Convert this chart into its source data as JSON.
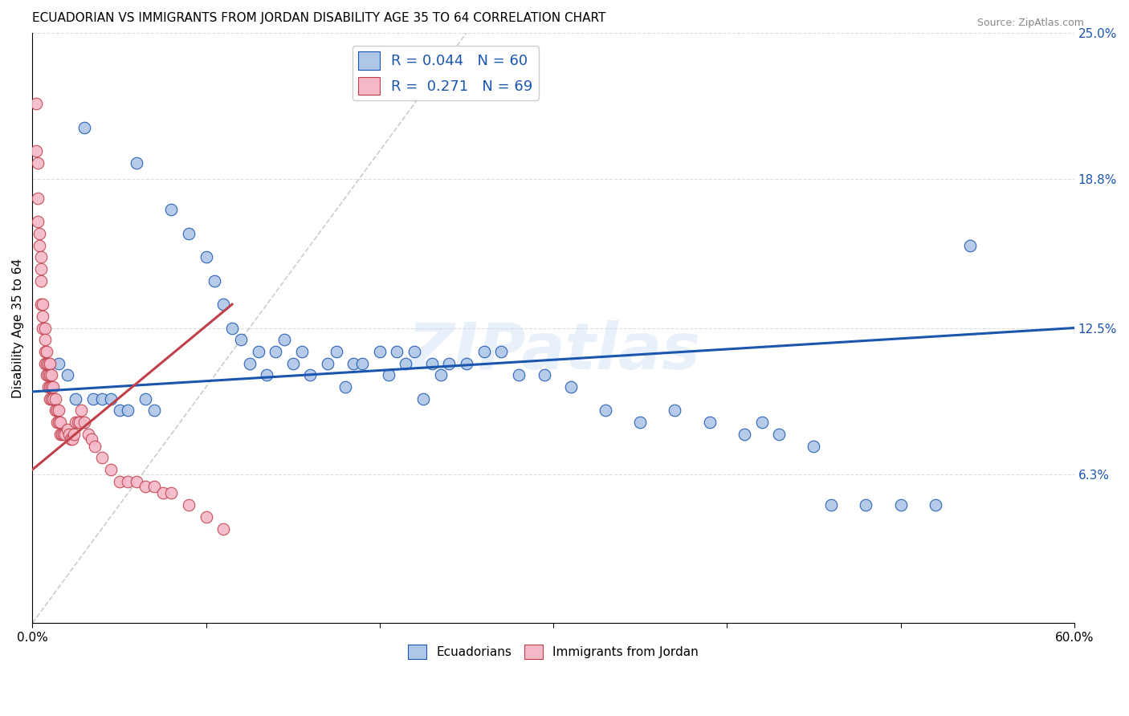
{
  "title": "ECUADORIAN VS IMMIGRANTS FROM JORDAN DISABILITY AGE 35 TO 64 CORRELATION CHART",
  "source": "Source: ZipAtlas.com",
  "ylabel": "Disability Age 35 to 64",
  "xlim": [
    0.0,
    0.6
  ],
  "ylim": [
    0.0,
    0.25
  ],
  "ytick_positions": [
    0.0,
    0.063,
    0.125,
    0.188,
    0.25
  ],
  "yticklabels": [
    "",
    "6.3%",
    "12.5%",
    "18.8%",
    "25.0%"
  ],
  "blue_R": "0.044",
  "blue_N": "60",
  "pink_R": "0.271",
  "pink_N": "69",
  "blue_color": "#aec6e8",
  "pink_color": "#f5b8c8",
  "blue_line_color": "#1a56b0",
  "pink_line_color": "#c0404a",
  "diagonal_color": "#cccccc",
  "legend_text_color": "#1a56b0",
  "watermark": "ZIPatlas",
  "blue_scatter_x": [
    0.03,
    0.06,
    0.08,
    0.09,
    0.1,
    0.105,
    0.11,
    0.115,
    0.12,
    0.125,
    0.13,
    0.135,
    0.14,
    0.145,
    0.15,
    0.155,
    0.16,
    0.17,
    0.175,
    0.18,
    0.185,
    0.19,
    0.2,
    0.205,
    0.21,
    0.215,
    0.22,
    0.225,
    0.23,
    0.235,
    0.24,
    0.25,
    0.26,
    0.27,
    0.28,
    0.295,
    0.31,
    0.33,
    0.35,
    0.37,
    0.39,
    0.41,
    0.42,
    0.43,
    0.45,
    0.46,
    0.48,
    0.5,
    0.52,
    0.54,
    0.015,
    0.02,
    0.025,
    0.035,
    0.04,
    0.045,
    0.05,
    0.055,
    0.065,
    0.07
  ],
  "blue_scatter_y": [
    0.21,
    0.195,
    0.175,
    0.165,
    0.155,
    0.145,
    0.135,
    0.125,
    0.12,
    0.11,
    0.115,
    0.105,
    0.115,
    0.12,
    0.11,
    0.115,
    0.105,
    0.11,
    0.115,
    0.1,
    0.11,
    0.11,
    0.115,
    0.105,
    0.115,
    0.11,
    0.115,
    0.095,
    0.11,
    0.105,
    0.11,
    0.11,
    0.115,
    0.115,
    0.105,
    0.105,
    0.1,
    0.09,
    0.085,
    0.09,
    0.085,
    0.08,
    0.085,
    0.08,
    0.075,
    0.05,
    0.05,
    0.05,
    0.05,
    0.16,
    0.11,
    0.105,
    0.095,
    0.095,
    0.095,
    0.095,
    0.09,
    0.09,
    0.095,
    0.09
  ],
  "pink_scatter_x": [
    0.002,
    0.002,
    0.003,
    0.003,
    0.003,
    0.004,
    0.004,
    0.005,
    0.005,
    0.005,
    0.005,
    0.006,
    0.006,
    0.006,
    0.007,
    0.007,
    0.007,
    0.007,
    0.008,
    0.008,
    0.008,
    0.009,
    0.009,
    0.009,
    0.01,
    0.01,
    0.01,
    0.01,
    0.011,
    0.011,
    0.011,
    0.012,
    0.012,
    0.013,
    0.013,
    0.014,
    0.014,
    0.015,
    0.015,
    0.016,
    0.016,
    0.017,
    0.018,
    0.019,
    0.02,
    0.021,
    0.022,
    0.023,
    0.024,
    0.025,
    0.026,
    0.027,
    0.028,
    0.03,
    0.032,
    0.034,
    0.036,
    0.04,
    0.045,
    0.05,
    0.055,
    0.06,
    0.065,
    0.07,
    0.075,
    0.08,
    0.09,
    0.1,
    0.11
  ],
  "pink_scatter_y": [
    0.22,
    0.2,
    0.195,
    0.18,
    0.17,
    0.16,
    0.165,
    0.155,
    0.15,
    0.145,
    0.135,
    0.135,
    0.13,
    0.125,
    0.125,
    0.12,
    0.115,
    0.11,
    0.115,
    0.11,
    0.105,
    0.11,
    0.105,
    0.1,
    0.11,
    0.105,
    0.1,
    0.095,
    0.105,
    0.1,
    0.095,
    0.1,
    0.095,
    0.095,
    0.09,
    0.09,
    0.085,
    0.09,
    0.085,
    0.085,
    0.08,
    0.08,
    0.08,
    0.08,
    0.082,
    0.08,
    0.078,
    0.078,
    0.08,
    0.085,
    0.085,
    0.085,
    0.09,
    0.085,
    0.08,
    0.078,
    0.075,
    0.07,
    0.065,
    0.06,
    0.06,
    0.06,
    0.058,
    0.058,
    0.055,
    0.055,
    0.05,
    0.045,
    0.04
  ]
}
